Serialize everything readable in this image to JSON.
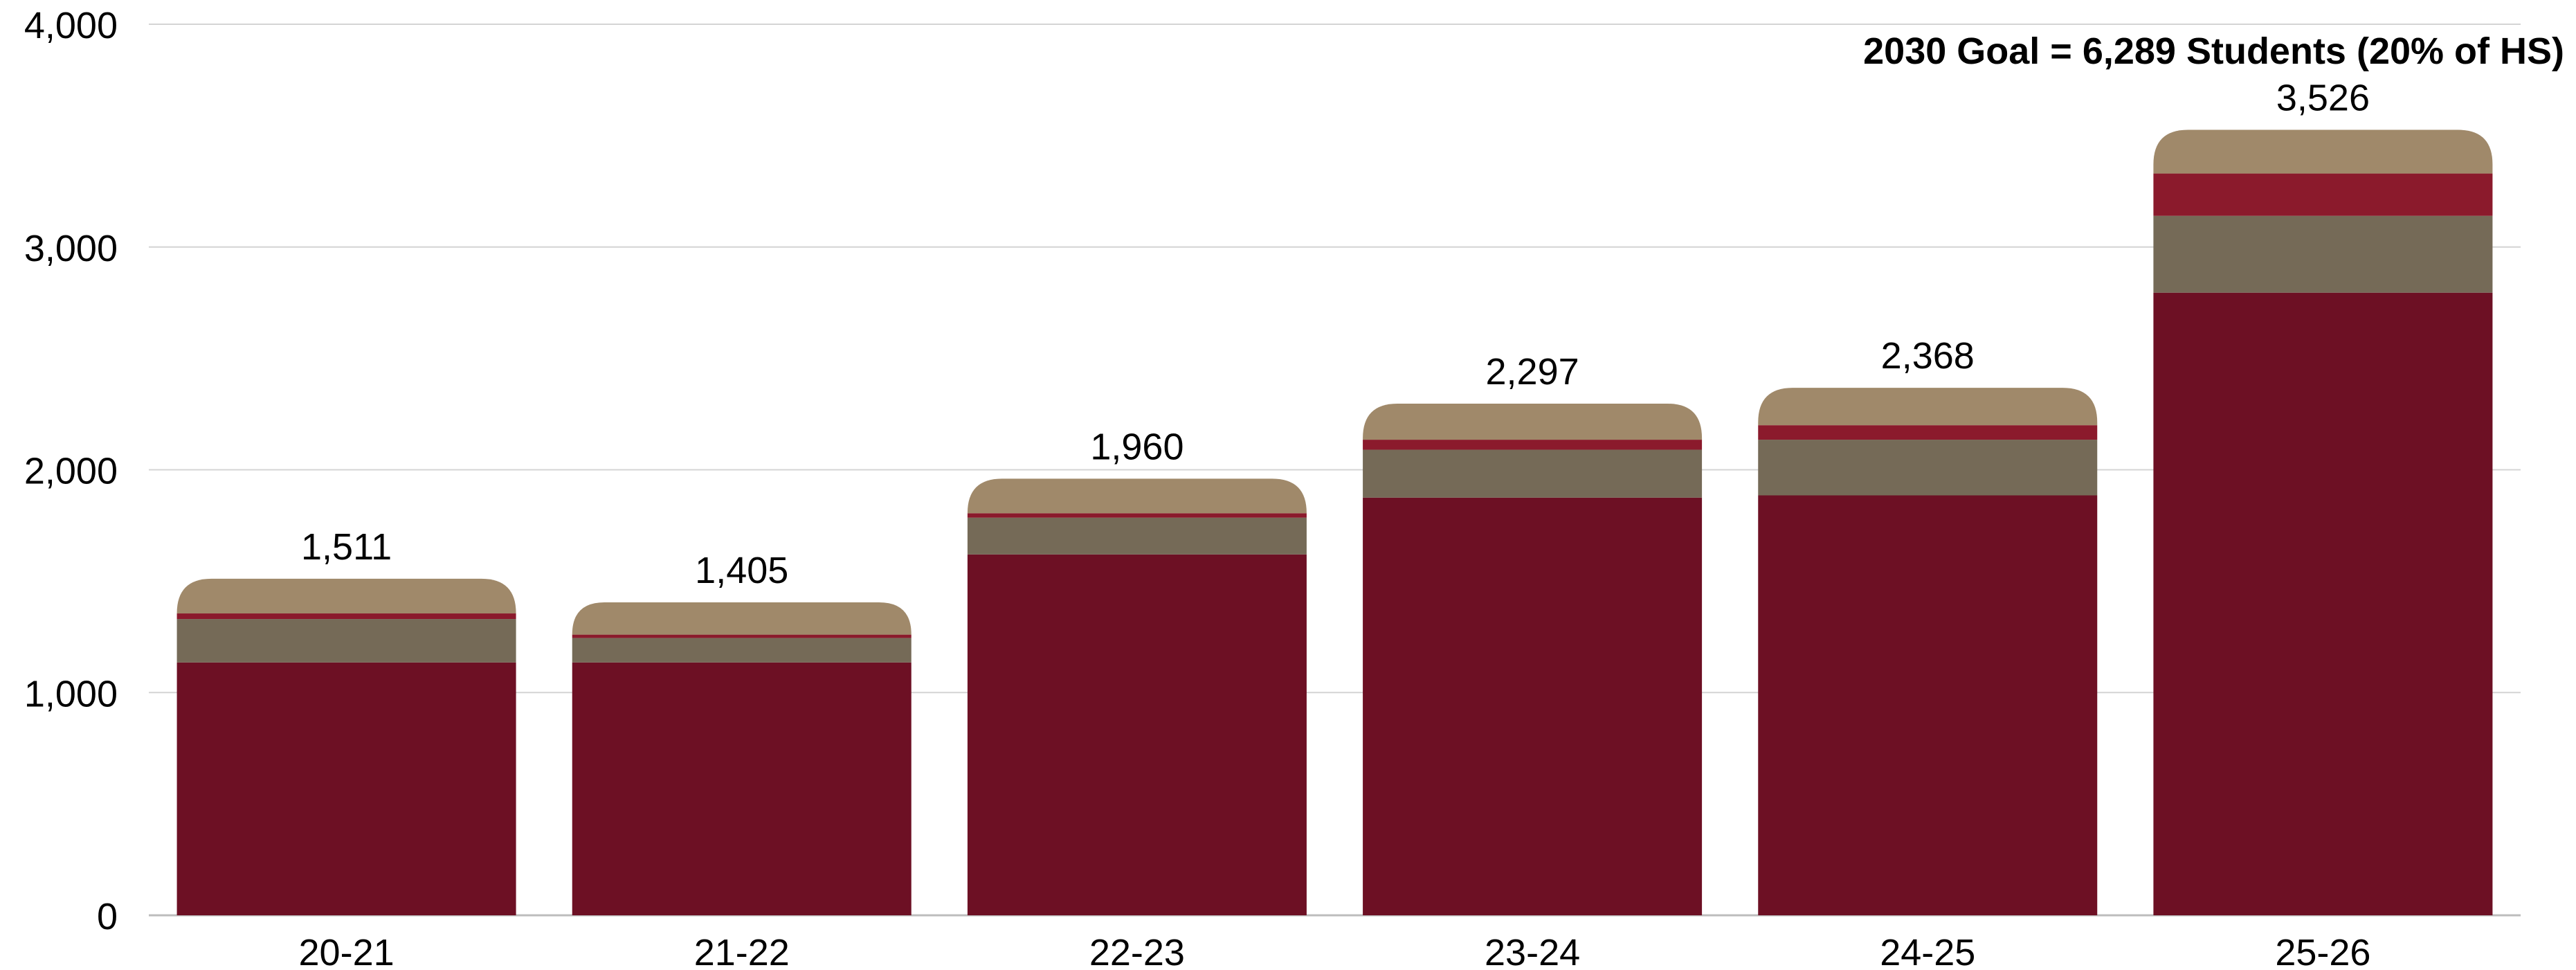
{
  "chart_data": {
    "type": "bar",
    "stacked": true,
    "categories": [
      "20-21",
      "21-22",
      "22-23",
      "23-24",
      "24-25",
      "25-26"
    ],
    "series": [
      {
        "color": "#6D1024",
        "values": [
          1135,
          1135,
          1620,
          1875,
          1885,
          2795
        ]
      },
      {
        "color": "#756A57",
        "values": [
          195,
          110,
          165,
          215,
          250,
          345
        ]
      },
      {
        "color": "#8B1A2C",
        "values": [
          25,
          15,
          20,
          45,
          65,
          190
        ]
      },
      {
        "color": "#A0896A",
        "values": [
          156,
          145,
          155,
          162,
          168,
          196
        ]
      }
    ],
    "totals": [
      "1,511",
      "1,405",
      "1,960",
      "2,297",
      "2,368",
      "3,526"
    ],
    "total_values": [
      1511,
      1405,
      1960,
      2297,
      2368,
      3526
    ],
    "y_ticks": [
      "0",
      "1,000",
      "2,000",
      "3,000",
      "4,000"
    ],
    "ylim": [
      0,
      4000
    ],
    "grid": true,
    "annotation": {
      "text": "2030 Goal = 6,289 Students (20% of HS)",
      "color": "#6D1024"
    }
  }
}
